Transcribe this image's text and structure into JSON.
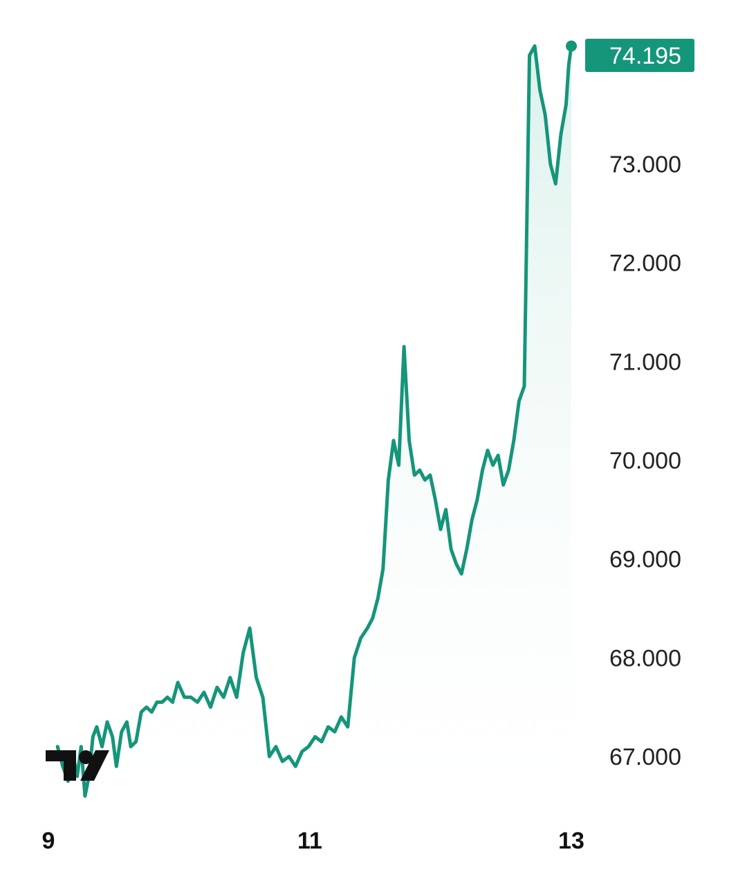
{
  "chart_data": {
    "type": "area",
    "title": "",
    "xlabel": "",
    "ylabel": "",
    "x_ticks": [
      9,
      11,
      13
    ],
    "xlim": [
      9,
      13
    ],
    "y_ticks": [
      "67.000",
      "68.000",
      "69.000",
      "70.000",
      "71.000",
      "72.000",
      "73.000"
    ],
    "ylim": [
      66.5,
      74.6
    ],
    "grid": false,
    "last_value_label": "74.195",
    "colors": {
      "line": "#15957a",
      "fill_top": "#bfe6dc",
      "fill_bottom": "#ffffff",
      "label_bg": "#15957a",
      "label_text": "#ffffff",
      "logo": "#111111"
    },
    "logo_icon": "tradingview-logo-icon",
    "series": [
      {
        "x": [
          9.07,
          9.11,
          9.15,
          9.19,
          9.22,
          9.25,
          9.28,
          9.31,
          9.34,
          9.37,
          9.41,
          9.45,
          9.49,
          9.52,
          9.56,
          9.6,
          9.63,
          9.67,
          9.71,
          9.75,
          9.79,
          9.83,
          9.87,
          9.91,
          9.95,
          9.99,
          10.04,
          10.09,
          10.14,
          10.19,
          10.24,
          10.29,
          10.34,
          10.39,
          10.44,
          10.49,
          10.54,
          10.59,
          10.64,
          10.69,
          10.74,
          10.79,
          10.84,
          10.89,
          10.94,
          10.99,
          11.04,
          11.09,
          11.14,
          11.19,
          11.24,
          11.29,
          11.34,
          11.39,
          11.44,
          11.48,
          11.52,
          11.56,
          11.6,
          11.64,
          11.68,
          11.72,
          11.76,
          11.8,
          11.84,
          11.88,
          11.92,
          11.96,
          12.0,
          12.04,
          12.08,
          12.12,
          12.16,
          12.2,
          12.24,
          12.28,
          12.32,
          12.36,
          12.4,
          12.44,
          12.48,
          12.52,
          12.56,
          12.6,
          12.64,
          12.68,
          12.72,
          12.76,
          12.8,
          12.84,
          12.88,
          12.92,
          12.96,
          12.98,
          13.0
        ],
        "values": [
          67.1,
          66.9,
          66.75,
          67.0,
          66.8,
          67.1,
          66.6,
          66.8,
          67.2,
          67.3,
          67.1,
          67.35,
          67.2,
          66.9,
          67.25,
          67.35,
          67.1,
          67.15,
          67.45,
          67.5,
          67.45,
          67.55,
          67.55,
          67.6,
          67.55,
          67.75,
          67.6,
          67.6,
          67.55,
          67.65,
          67.5,
          67.7,
          67.6,
          67.8,
          67.6,
          68.05,
          68.3,
          67.8,
          67.6,
          67.0,
          67.1,
          66.95,
          67.0,
          66.9,
          67.05,
          67.1,
          67.2,
          67.15,
          67.3,
          67.25,
          67.4,
          67.3,
          68.0,
          68.2,
          68.3,
          68.4,
          68.6,
          68.9,
          69.8,
          70.2,
          69.95,
          71.15,
          70.2,
          69.85,
          69.9,
          69.8,
          69.85,
          69.6,
          69.3,
          69.5,
          69.1,
          68.95,
          68.85,
          69.1,
          69.4,
          69.6,
          69.9,
          70.1,
          69.95,
          70.05,
          69.75,
          69.9,
          70.2,
          70.6,
          70.75,
          74.1,
          74.195,
          73.75,
          73.5,
          73.0,
          72.8,
          73.3,
          73.6,
          74.0,
          74.195
        ]
      }
    ]
  }
}
